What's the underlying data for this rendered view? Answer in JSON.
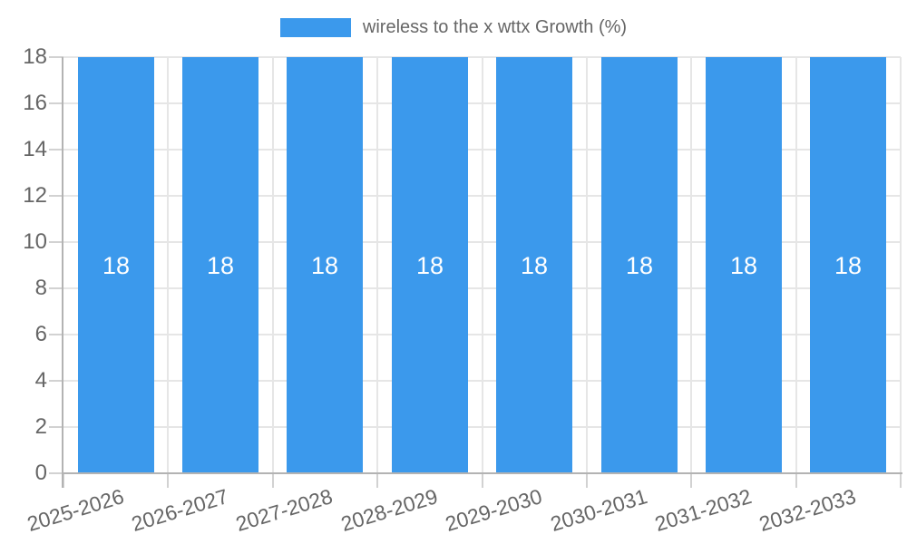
{
  "legend": {
    "label": "wireless to the x wttx Growth (%)"
  },
  "colors": {
    "bar": "#3b99ec",
    "grid": "#e6e6e6",
    "tick_mark": "#d2d2d2",
    "axis": "#b3b3b3",
    "tick_text": "#666666",
    "legend_text": "#666666",
    "bar_label_text": "#ffffff",
    "background": "#ffffff"
  },
  "chart_data": {
    "type": "bar",
    "title": "",
    "legend_position": "top",
    "legend_label": "wireless to the x wttx Growth (%)",
    "categories": [
      "2025-2026",
      "2026-2027",
      "2027-2028",
      "2028-2029",
      "2029-2030",
      "2030-2031",
      "2031-2032",
      "2032-2033"
    ],
    "series": [
      {
        "name": "wireless to the x wttx Growth (%)",
        "values": [
          18,
          18,
          18,
          18,
          18,
          18,
          18,
          18
        ]
      }
    ],
    "bar_value_labels": [
      "18",
      "18",
      "18",
      "18",
      "18",
      "18",
      "18",
      "18"
    ],
    "xlabel": "",
    "ylabel": "",
    "ylim": [
      0,
      18
    ],
    "yticks": [
      0,
      2,
      4,
      6,
      8,
      10,
      12,
      14,
      16,
      18
    ],
    "grid": true,
    "x_label_rotation_deg": -17
  }
}
